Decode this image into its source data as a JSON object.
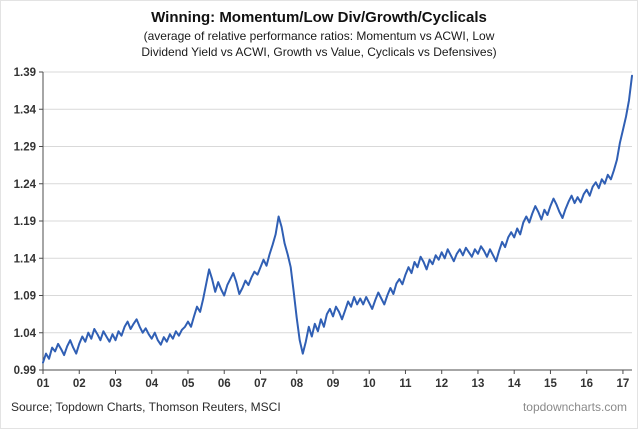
{
  "header": {
    "title": "Winning: Momentum/Low Div/Growth/Cyclicals",
    "subtitle_line1": "(average of relative performance ratios: Momentum vs ACWI, Low",
    "subtitle_line2": "Dividend Yield vs ACWI, Growth vs Value, Cyclicals vs Defensives)"
  },
  "footer": {
    "source": "Source; Topdown Charts, Thomson Reuters, MSCI",
    "site": "topdowncharts.com"
  },
  "chart_data": {
    "type": "line",
    "title": "Winning: Momentum/Low Div/Growth/Cyclicals",
    "xlabel": "",
    "ylabel": "",
    "ylim": [
      0.99,
      1.39
    ],
    "y_tick_step": 0.05,
    "y_tick_labels": [
      "0.99",
      "1.04",
      "1.09",
      "1.14",
      "1.19",
      "1.24",
      "1.29",
      "1.34",
      "1.39"
    ],
    "x_range": [
      2001,
      2017.25
    ],
    "x_tick_years": [
      2001,
      2002,
      2003,
      2004,
      2005,
      2006,
      2007,
      2008,
      2009,
      2010,
      2011,
      2012,
      2013,
      2014,
      2015,
      2016,
      2017
    ],
    "x_tick_labels": [
      "01",
      "02",
      "03",
      "04",
      "05",
      "06",
      "07",
      "08",
      "09",
      "10",
      "11",
      "12",
      "13",
      "14",
      "15",
      "16",
      "17"
    ],
    "grid": true,
    "legend": "none",
    "line_color": "#305fb4",
    "grid_color": "#d9d9d9",
    "axis_color": "#4d4d4d",
    "tick_text_color": "#333333",
    "series": [
      {
        "name": "Average of relative performance ratios",
        "start_year": 2001,
        "points_per_year": 12,
        "values": [
          1.0,
          1.012,
          1.005,
          1.02,
          1.015,
          1.025,
          1.018,
          1.01,
          1.022,
          1.03,
          1.02,
          1.012,
          1.025,
          1.035,
          1.028,
          1.04,
          1.032,
          1.045,
          1.038,
          1.03,
          1.042,
          1.035,
          1.028,
          1.038,
          1.03,
          1.042,
          1.036,
          1.048,
          1.055,
          1.045,
          1.052,
          1.058,
          1.048,
          1.04,
          1.046,
          1.038,
          1.032,
          1.04,
          1.03,
          1.024,
          1.034,
          1.028,
          1.038,
          1.032,
          1.042,
          1.036,
          1.044,
          1.048,
          1.055,
          1.048,
          1.062,
          1.075,
          1.068,
          1.085,
          1.105,
          1.125,
          1.112,
          1.095,
          1.108,
          1.098,
          1.09,
          1.104,
          1.112,
          1.12,
          1.108,
          1.092,
          1.1,
          1.11,
          1.104,
          1.114,
          1.122,
          1.118,
          1.128,
          1.138,
          1.13,
          1.145,
          1.158,
          1.172,
          1.196,
          1.182,
          1.16,
          1.145,
          1.128,
          1.095,
          1.06,
          1.03,
          1.012,
          1.028,
          1.048,
          1.035,
          1.052,
          1.042,
          1.058,
          1.048,
          1.065,
          1.072,
          1.062,
          1.075,
          1.068,
          1.058,
          1.07,
          1.082,
          1.075,
          1.088,
          1.078,
          1.086,
          1.078,
          1.088,
          1.08,
          1.072,
          1.084,
          1.094,
          1.086,
          1.078,
          1.09,
          1.1,
          1.092,
          1.106,
          1.112,
          1.105,
          1.118,
          1.128,
          1.12,
          1.135,
          1.128,
          1.142,
          1.135,
          1.125,
          1.138,
          1.132,
          1.144,
          1.138,
          1.148,
          1.14,
          1.152,
          1.144,
          1.136,
          1.146,
          1.152,
          1.144,
          1.154,
          1.148,
          1.142,
          1.152,
          1.146,
          1.156,
          1.15,
          1.142,
          1.152,
          1.144,
          1.136,
          1.15,
          1.162,
          1.155,
          1.168,
          1.175,
          1.168,
          1.18,
          1.172,
          1.188,
          1.196,
          1.188,
          1.2,
          1.21,
          1.202,
          1.192,
          1.205,
          1.198,
          1.21,
          1.22,
          1.212,
          1.202,
          1.194,
          1.206,
          1.216,
          1.224,
          1.214,
          1.222,
          1.215,
          1.226,
          1.232,
          1.224,
          1.236,
          1.242,
          1.234,
          1.246,
          1.24,
          1.252,
          1.246,
          1.258,
          1.272,
          1.295,
          1.312,
          1.33,
          1.352,
          1.385
        ]
      }
    ]
  }
}
